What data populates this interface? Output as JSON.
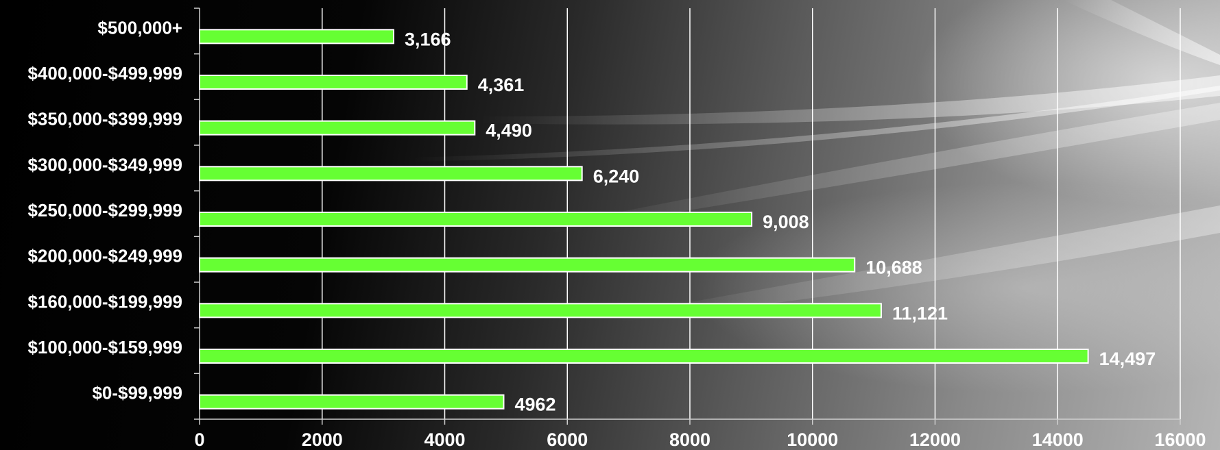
{
  "chart_data": {
    "type": "bar",
    "orientation": "horizontal",
    "categories": [
      "$500,000+",
      "$400,000-$499,999",
      "$350,000-$399,999",
      "$300,000-$349,999",
      "$250,000-$299,999",
      "$200,000-$249,999",
      "$160,000-$199,999",
      "$100,000-$159,999",
      "$0-$99,999"
    ],
    "values": [
      3166,
      4361,
      4490,
      6240,
      9008,
      10688,
      11121,
      14497,
      4962
    ],
    "data_labels": [
      "3,166",
      "4,361",
      "4,490",
      "6,240",
      "9,008",
      "10,688",
      "11,121",
      "14,497",
      "4962"
    ],
    "xlim": [
      0,
      16000
    ],
    "xticks": [
      0,
      2000,
      4000,
      6000,
      8000,
      10000,
      12000,
      14000,
      16000
    ],
    "xtick_labels": [
      "0",
      "2000",
      "4000",
      "6000",
      "8000",
      "10000",
      "12000",
      "14000",
      "16000"
    ],
    "grid": "vertical",
    "legend": "none",
    "title": "",
    "xlabel": "",
    "ylabel": "",
    "colors": {
      "bar_fill": "#66ff33",
      "bar_stroke": "#ffffff",
      "text": "#ffffff",
      "grid": "#ffffff",
      "background": "#000000"
    }
  }
}
